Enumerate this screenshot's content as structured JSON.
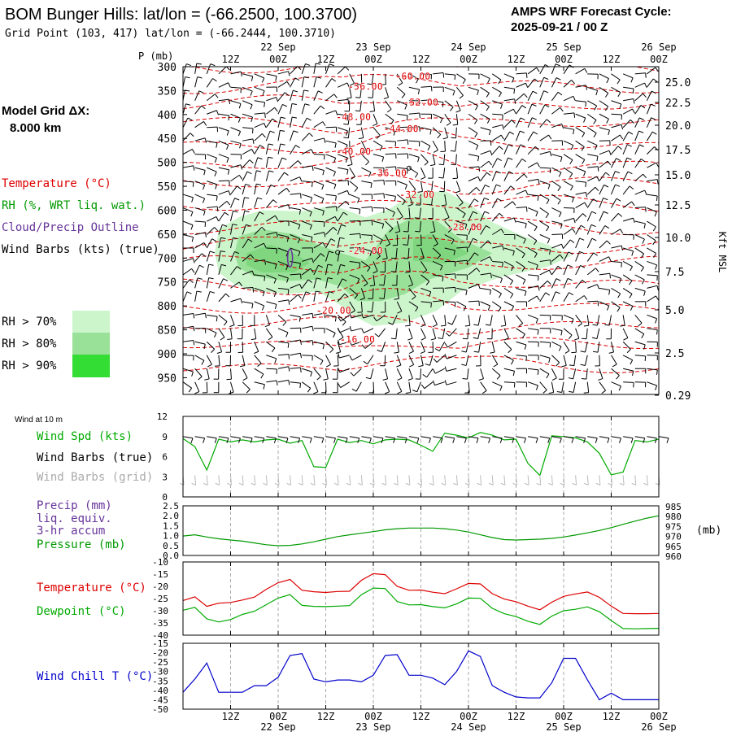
{
  "header": {
    "title": "BOM Bunger Hills:  lat/lon = (-66.2500, 100.3700)",
    "subtitle": "Grid Point (103, 417) lat/lon = (-66.2444, 100.3710)",
    "cycle_line1": "AMPS WRF Forecast Cycle:",
    "cycle_line2": "2025-09-21 / 00  Z"
  },
  "model_grid": {
    "line1": "Model Grid ΔX:",
    "line2": "8.000 km"
  },
  "legend": {
    "temperature": "Temperature (°C)",
    "rh": "RH (%, WRT liq. wat.)",
    "cloud": "Cloud/Precip Outline",
    "wind": "Wind Barbs (kts) (true)",
    "rh_levels": [
      {
        "label": "RH > 70%",
        "color": "#ccf5cc"
      },
      {
        "label": "RH > 80%",
        "color": "#99e199"
      },
      {
        "label": "RH > 90%",
        "color": "#33dd33"
      }
    ]
  },
  "colors": {
    "temp": "#dd0000",
    "rh": "#009900",
    "cloud": "#663399",
    "greytext": "#aaaaaa",
    "pressure": "#009900",
    "dew": "#00aa00",
    "windchill": "#0000cc",
    "grid": "#999999"
  },
  "time_axis": {
    "hour_labels": [
      "12Z",
      "00Z",
      "12Z",
      "00Z",
      "12Z",
      "00Z",
      "12Z",
      "00Z",
      "12Z",
      "00Z"
    ],
    "date_labels": [
      "22 Sep",
      "23 Sep",
      "24 Sep",
      "25 Sep",
      "26 Sep"
    ]
  },
  "chart_data": [
    {
      "type": "contour",
      "name": "upper-air-cross-section",
      "ylabel": "P (mb)",
      "y2label": "Kft MSL",
      "x_range_hours": [
        0,
        120
      ],
      "pressure_ticks": [
        300,
        350,
        400,
        450,
        500,
        550,
        600,
        650,
        700,
        750,
        800,
        850,
        900,
        950
      ],
      "height_ticks": [
        "25.0",
        "22.5",
        "20.0",
        "17.5",
        "15.0",
        "12.5",
        "10.0",
        "7.5",
        "5.0",
        "2.5",
        "0.29"
      ],
      "temperature_labels": [
        "-60.00",
        "-56.00",
        "-52.00",
        "-48.00",
        "-44.00",
        "-40.00",
        "-36.00",
        "-32.00",
        "-28.00",
        "-24.00",
        "-20.00",
        "-16.00"
      ],
      "temperature_label_positions": [
        {
          "t": 58,
          "p": 320
        },
        {
          "t": 46,
          "p": 342
        },
        {
          "t": 60,
          "p": 375
        },
        {
          "t": 43,
          "p": 405
        },
        {
          "t": 55,
          "p": 430
        },
        {
          "t": 43,
          "p": 478
        },
        {
          "t": 52,
          "p": 523
        },
        {
          "t": 59,
          "p": 568
        },
        {
          "t": 71,
          "p": 636
        },
        {
          "t": 46,
          "p": 685
        },
        {
          "t": 38,
          "p": 810
        },
        {
          "t": 44,
          "p": 870
        }
      ]
    },
    {
      "type": "line",
      "name": "wind-10m",
      "title": "Wind at 10 m",
      "labels": {
        "spd": "Wind Spd (kts)",
        "barbs": "Wind Barbs (true)",
        "barbs_grid": "Wind Barbs (grid)"
      },
      "ylim": [
        0,
        12
      ],
      "y_ticks": [
        "12",
        "9",
        "6",
        "3",
        "0"
      ],
      "x_hours": [
        0,
        3,
        6,
        9,
        12,
        15,
        18,
        21,
        24,
        27,
        30,
        33,
        36,
        39,
        42,
        45,
        48,
        51,
        54,
        57,
        60,
        63,
        66,
        69,
        72,
        75,
        78,
        81,
        84,
        87,
        90,
        93,
        96,
        99,
        102,
        105,
        108,
        111,
        114,
        117,
        120
      ],
      "values": [
        8.7,
        7.5,
        4,
        8.6,
        8.2,
        8.5,
        8.2,
        8.5,
        8.6,
        8,
        8.4,
        4.5,
        4.4,
        8.6,
        8.1,
        8.4,
        7.9,
        8.5,
        8.6,
        8.5,
        7.7,
        6.8,
        9.5,
        9.2,
        8.8,
        9.6,
        9.2,
        8.5,
        8.6,
        5,
        3.2,
        9.1,
        9,
        8.8,
        8.2,
        6.5,
        3.3,
        3.7,
        8.4,
        8.2,
        8.6
      ]
    },
    {
      "type": "line",
      "name": "precip-pressure",
      "labels": {
        "precip": "Precip (mm)",
        "precip2": "liq. equiv.",
        "precip3": "3-hr accum",
        "pressure": "Pressure (mb)"
      },
      "y_left_ticks": [
        "2.5",
        "2.0",
        "1.5",
        "1.0",
        "0.5",
        "0.0"
      ],
      "y_right_ticks": [
        "985",
        "980",
        "975",
        "970",
        "965",
        "960"
      ],
      "y_right_label": "(mb)",
      "ylim_left": [
        0,
        2.5
      ],
      "ylim_right": [
        960,
        985
      ],
      "x_hours": [
        0,
        3,
        6,
        9,
        12,
        15,
        18,
        21,
        24,
        27,
        30,
        33,
        36,
        39,
        42,
        45,
        48,
        51,
        54,
        57,
        60,
        63,
        66,
        69,
        72,
        75,
        78,
        81,
        84,
        87,
        90,
        93,
        96,
        99,
        102,
        105,
        108,
        111,
        114,
        117,
        120
      ],
      "pressure": [
        969.8,
        970.4,
        969.3,
        968.4,
        967.8,
        967.2,
        966.3,
        965.4,
        964.9,
        965.1,
        965.8,
        966.9,
        968.2,
        969.5,
        970.4,
        971.2,
        972.0,
        972.9,
        973.5,
        973.8,
        973.8,
        973.8,
        973.5,
        972.8,
        971.8,
        970.4,
        969.0,
        968.0,
        967.8,
        968.0,
        968.2,
        968.6,
        969.3,
        970.3,
        971.4,
        972.6,
        974.0,
        975.7,
        977.3,
        978.8,
        980.0
      ],
      "precip": []
    },
    {
      "type": "line",
      "name": "temperature-dewpoint",
      "labels": {
        "temp": "Temperature (°C)",
        "dew": "Dewpoint (°C)"
      },
      "y_ticks": [
        "-10",
        "-15",
        "-20",
        "-25",
        "-30",
        "-35",
        "-40"
      ],
      "ylim": [
        -40,
        -10
      ],
      "x_hours": [
        0,
        3,
        6,
        9,
        12,
        15,
        18,
        21,
        24,
        27,
        30,
        33,
        36,
        39,
        42,
        45,
        48,
        51,
        54,
        57,
        60,
        63,
        66,
        69,
        72,
        75,
        78,
        81,
        84,
        87,
        90,
        93,
        96,
        99,
        102,
        105,
        108,
        111,
        114,
        117,
        120
      ],
      "temperature": [
        -25.8,
        -24.3,
        -28.2,
        -26.9,
        -26.6,
        -25.6,
        -24.4,
        -21.2,
        -18.5,
        -17.2,
        -21.6,
        -22.2,
        -22.5,
        -22.1,
        -22,
        -17.5,
        -14.8,
        -15.2,
        -20,
        -21.6,
        -21.5,
        -22.4,
        -23,
        -21,
        -18.8,
        -19,
        -23,
        -25.2,
        -26.3,
        -28.1,
        -29.6,
        -26.5,
        -24.1,
        -23.1,
        -22.3,
        -24.5,
        -28.1,
        -31.1,
        -31.2,
        -31.2,
        -31.1
      ],
      "dewpoint": [
        -29.8,
        -28.6,
        -33.3,
        -34.6,
        -33.6,
        -31.5,
        -30.2,
        -27.5,
        -24.8,
        -23.4,
        -27.8,
        -28.2,
        -28.3,
        -28.1,
        -27.9,
        -23.4,
        -20.7,
        -20.9,
        -26.2,
        -27.6,
        -27.5,
        -28.3,
        -28.8,
        -27.2,
        -24.8,
        -24.9,
        -29,
        -31.2,
        -32.4,
        -34.3,
        -35.6,
        -32.2,
        -30,
        -29.4,
        -28.4,
        -30.4,
        -34,
        -37.3,
        -37.4,
        -37.3,
        -37.2
      ]
    },
    {
      "type": "line",
      "name": "wind-chill",
      "labels": {
        "windchill": "Wind Chill T (°C)"
      },
      "y_ticks": [
        "-15",
        "-20",
        "-25",
        "-30",
        "-35",
        "-40",
        "-45",
        "-50"
      ],
      "ylim": [
        -50,
        -15
      ],
      "x_hours": [
        0,
        3,
        6,
        9,
        12,
        15,
        18,
        21,
        24,
        27,
        30,
        33,
        36,
        39,
        42,
        45,
        48,
        51,
        54,
        57,
        60,
        63,
        66,
        69,
        72,
        75,
        78,
        81,
        84,
        87,
        90,
        93,
        96,
        99,
        102,
        105,
        108,
        111,
        114,
        117,
        120
      ],
      "values": [
        -41,
        -34,
        -25.5,
        -41,
        -41,
        -41,
        -37.5,
        -37.5,
        -33,
        -21.5,
        -20.5,
        -34,
        -35.5,
        -34.5,
        -34.5,
        -35.5,
        -32,
        -21.5,
        -21,
        -32,
        -32,
        -33.5,
        -37,
        -30,
        -19,
        -22,
        -37.5,
        -41,
        -43.5,
        -44,
        -44,
        -36,
        -23,
        -23,
        -34.5,
        -45,
        -41.5,
        -45,
        -45,
        -45,
        -45
      ]
    }
  ]
}
